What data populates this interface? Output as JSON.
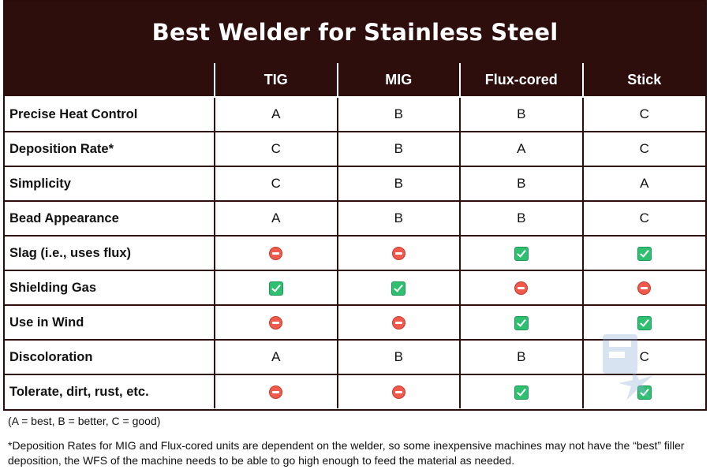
{
  "title": "Best Welder for Stainless Steel",
  "columns": [
    "TIG",
    "MIG",
    "Flux-cored",
    "Stick"
  ],
  "rows": [
    {
      "label": "Precise Heat Control",
      "cells": [
        "A",
        "B",
        "B",
        "C"
      ]
    },
    {
      "label": "Deposition Rate*",
      "cells": [
        "C",
        "B",
        "A",
        "C"
      ]
    },
    {
      "label": "Simplicity",
      "cells": [
        "C",
        "B",
        "B",
        "A"
      ]
    },
    {
      "label": "Bead Appearance",
      "cells": [
        "A",
        "B",
        "B",
        "C"
      ]
    },
    {
      "label": "Slag (i.e., uses flux)",
      "cells": [
        "no-entry-icon",
        "no-entry-icon",
        "check-icon",
        "check-icon"
      ]
    },
    {
      "label": "Shielding Gas",
      "cells": [
        "check-icon",
        "check-icon",
        "no-entry-icon",
        "no-entry-icon"
      ]
    },
    {
      "label": "Use in Wind",
      "cells": [
        "no-entry-icon",
        "no-entry-icon",
        "check-icon",
        "check-icon"
      ]
    },
    {
      "label": "Discoloration",
      "cells": [
        "A",
        "B",
        "B",
        "C"
      ]
    },
    {
      "label": "Tolerate, dirt, rust, etc.",
      "cells": [
        "no-entry-icon",
        "no-entry-icon",
        "check-icon",
        "check-icon"
      ]
    }
  ],
  "legend": "(A = best, B = better, C = good)",
  "footnote": "*Deposition Rates for MIG and Flux-cored units are dependent on the welder, so some inexpensive machines may not have the “best” filler deposition, the WFS of the machine needs to be able to go high enough to feed the material as needed.",
  "colors": {
    "header_bg": "#2e0d0d",
    "header_text": "#ffffff",
    "check": "#2fbf71",
    "no_entry": "#f05a4c"
  }
}
